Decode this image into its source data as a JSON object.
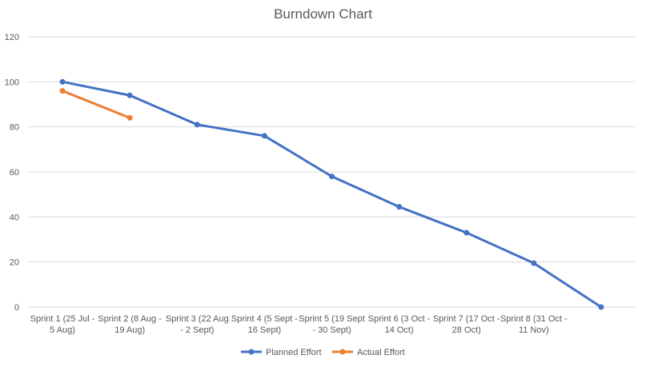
{
  "chart_data": {
    "type": "line",
    "title": "Burndown Chart",
    "xlabel": "",
    "ylabel": "",
    "ylim": [
      0,
      120
    ],
    "yticks": [
      0,
      20,
      40,
      60,
      80,
      100,
      120
    ],
    "grid": true,
    "legend_position": "bottom",
    "categories": [
      "Sprint 1 (25 Jul - 5 Aug)",
      "Sprint 2 (8 Aug - 19 Aug)",
      "Sprint 3 (22 Aug - 2 Sept)",
      "Sprint 4 (5 Sept - 16 Sept)",
      "Sprint 5 (19 Sept - 30 Sept)",
      "Sprint 6 (3 Oct - 14 Oct)",
      "Sprint 7 (17 Oct - 28 Oct)",
      "Sprint 8 (31 Oct - 11 Nov)",
      ""
    ],
    "category_lines": [
      [
        "Sprint 1 (25 Jul -",
        "5 Aug)"
      ],
      [
        "Sprint 2 (8 Aug -",
        "19 Aug)"
      ],
      [
        "Sprint 3 (22 Aug",
        "- 2 Sept)"
      ],
      [
        "Sprint 4 (5 Sept -",
        "16 Sept)"
      ],
      [
        "Sprint 5 (19 Sept",
        "- 30 Sept)"
      ],
      [
        "Sprint 6 (3 Oct -",
        "14 Oct)"
      ],
      [
        "Sprint 7 (17 Oct -",
        "28 Oct)"
      ],
      [
        "Sprint 8 (31 Oct -",
        "11 Nov)"
      ],
      [
        "",
        ""
      ]
    ],
    "series": [
      {
        "name": "Planned Effort",
        "color": "#4472C4",
        "values": [
          100,
          94,
          81,
          76,
          58,
          44.5,
          33,
          19.5,
          0
        ]
      },
      {
        "name": "Actual Effort",
        "color": "#ED7D31",
        "values": [
          96,
          84,
          null,
          null,
          null,
          null,
          null,
          null,
          null
        ]
      }
    ]
  },
  "colors": {
    "grid": "#D9D9D9",
    "axis_text": "#595959"
  }
}
